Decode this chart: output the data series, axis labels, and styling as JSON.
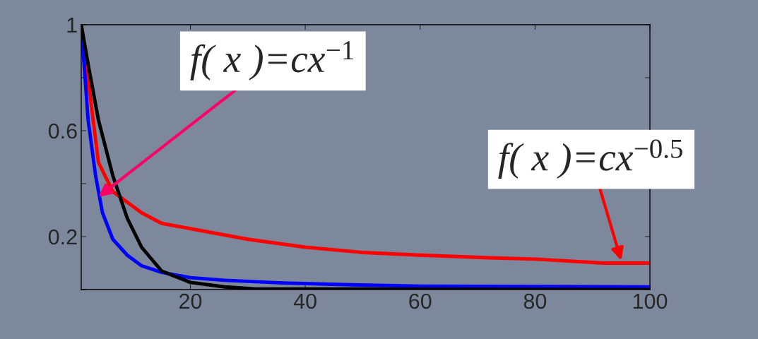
{
  "chart_data": {
    "type": "line",
    "series": [
      {
        "color": "#ff0000",
        "x": [
          1,
          4,
          6.5,
          11.5,
          15,
          20,
          30,
          40,
          50,
          60,
          72,
          80,
          92,
          100
        ],
        "values": [
          1.0,
          0.48,
          0.37,
          0.29,
          0.25,
          0.23,
          0.19,
          0.16,
          0.14,
          0.13,
          0.12,
          0.115,
          0.1,
          0.1
        ]
      },
      {
        "color": "#0000ff",
        "x": [
          1,
          2.2,
          3.5,
          4.7,
          6.5,
          9,
          11.5,
          15,
          20,
          26,
          36,
          48,
          60,
          100
        ],
        "values": [
          1.0,
          0.64,
          0.43,
          0.29,
          0.19,
          0.13,
          0.09,
          0.065,
          0.045,
          0.035,
          0.025,
          0.018,
          0.013,
          0.01
        ]
      },
      {
        "color": "#000000",
        "x": [
          1,
          2.2,
          4,
          6.5,
          9,
          11.5,
          15,
          20,
          26,
          31,
          100
        ],
        "values": [
          1.0,
          0.85,
          0.64,
          0.43,
          0.27,
          0.16,
          0.07,
          0.027,
          0.01,
          0.003,
          0.0
        ]
      }
    ],
    "xlim": [
      1,
      100
    ],
    "ylim": [
      0,
      1
    ],
    "xticks": [
      20,
      40,
      60,
      80,
      100
    ],
    "yticks": [
      {
        "value": 0,
        "label": null
      },
      0.2,
      {
        "value": 0.4,
        "label": null
      },
      0.6,
      {
        "value": 0.8,
        "label": null
      },
      1
    ],
    "annotations": [
      {
        "text": "f( x )=cx$^{−1}$",
        "x": 4,
        "y": 0.35
      },
      {
        "text": "f( x )=cx$^{−0.5}$",
        "x": 95,
        "y": 0.11
      }
    ],
    "grid": false,
    "legend": false
  }
}
